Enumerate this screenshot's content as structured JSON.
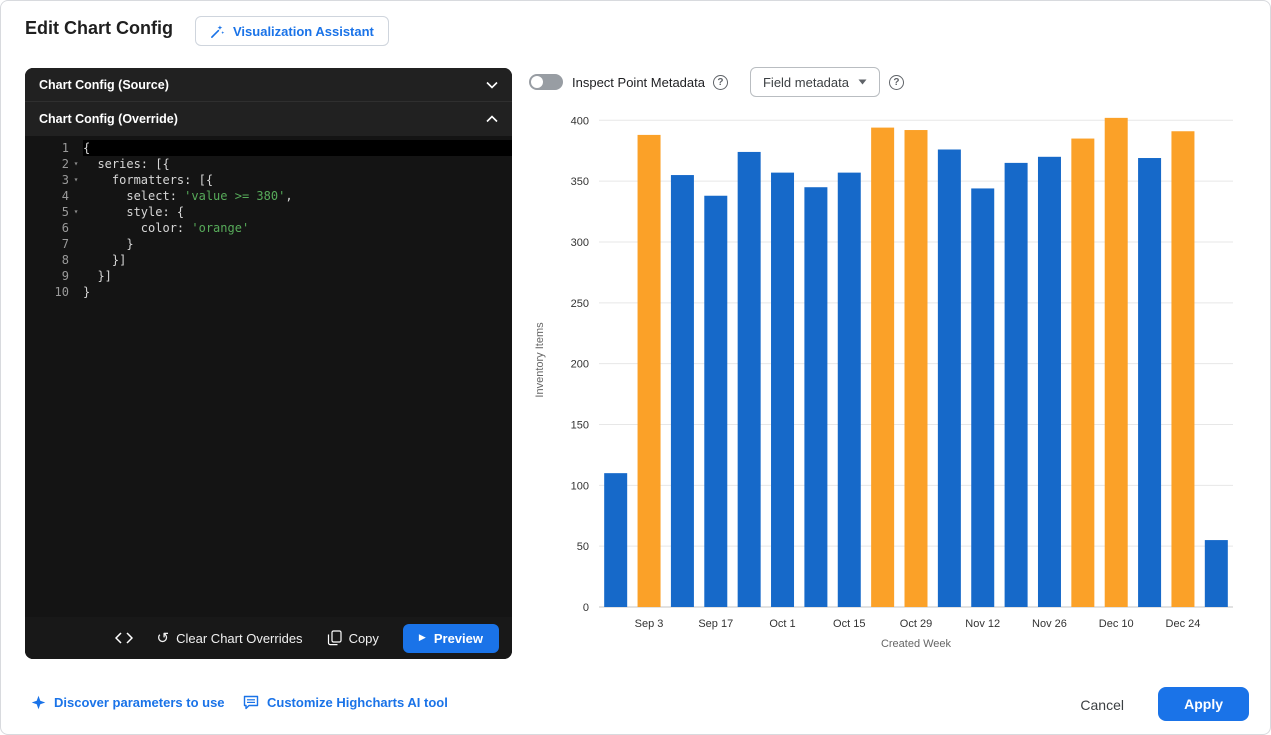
{
  "header": {
    "title": "Edit Chart Config",
    "assistant_button": "Visualization Assistant"
  },
  "editor": {
    "source_section": "Chart Config (Source)",
    "override_section": "Chart Config (Override)",
    "lines": [
      {
        "num": "1",
        "fold": false,
        "selected": true,
        "segments": [
          {
            "t": "{",
            "c": "p"
          }
        ]
      },
      {
        "num": "2",
        "fold": true,
        "segments": [
          {
            "t": "  series: [{",
            "c": "p"
          }
        ]
      },
      {
        "num": "3",
        "fold": true,
        "segments": [
          {
            "t": "    formatters: [{",
            "c": "p"
          }
        ]
      },
      {
        "num": "4",
        "fold": false,
        "segments": [
          {
            "t": "      select: ",
            "c": "p"
          },
          {
            "t": "'value >= 380'",
            "c": "s"
          },
          {
            "t": ",",
            "c": "p"
          }
        ]
      },
      {
        "num": "5",
        "fold": true,
        "segments": [
          {
            "t": "      style: {",
            "c": "p"
          }
        ]
      },
      {
        "num": "6",
        "fold": false,
        "segments": [
          {
            "t": "        color: ",
            "c": "p"
          },
          {
            "t": "'orange'",
            "c": "s"
          }
        ]
      },
      {
        "num": "7",
        "fold": false,
        "segments": [
          {
            "t": "      }",
            "c": "p"
          }
        ]
      },
      {
        "num": "8",
        "fold": false,
        "segments": [
          {
            "t": "    }]",
            "c": "p"
          }
        ]
      },
      {
        "num": "9",
        "fold": false,
        "segments": [
          {
            "t": "  }]",
            "c": "p"
          }
        ]
      },
      {
        "num": "10",
        "fold": false,
        "segments": [
          {
            "t": "}",
            "c": "p"
          }
        ]
      }
    ],
    "footer": {
      "clear": "Clear Chart Overrides",
      "copy": "Copy",
      "preview": "Preview"
    }
  },
  "toolbar": {
    "inspect_toggle": "Inspect Point Metadata",
    "inspect_toggle_state": "off",
    "field_dropdown": "Field metadata"
  },
  "chart_data": {
    "type": "bar",
    "title": "",
    "xlabel": "Created Week",
    "ylabel": "Inventory Items",
    "ylim": [
      0,
      400
    ],
    "yticks": [
      0,
      50,
      100,
      150,
      200,
      250,
      300,
      350,
      400
    ],
    "x_tick_labels": [
      "Sep 3",
      "Sep 17",
      "Oct 1",
      "Oct 15",
      "Oct 29",
      "Nov 12",
      "Nov 26",
      "Dec 10",
      "Dec 24"
    ],
    "tick_every": 2,
    "values": [
      110,
      388,
      355,
      338,
      374,
      357,
      345,
      357,
      394,
      392,
      376,
      344,
      365,
      370,
      385,
      402,
      369,
      391,
      55
    ],
    "highlight_rule": "value >= 380",
    "highlight_threshold": 380,
    "bar_color": "#1669c9",
    "highlight_color": "#fba128",
    "grid": true,
    "legend": false
  },
  "footer": {
    "discover": "Discover parameters to use",
    "customize": "Customize Highcharts AI tool",
    "cancel": "Cancel",
    "apply": "Apply"
  },
  "colors": {
    "accent": "#1a73e8",
    "bar_blue": "#1669c9",
    "bar_orange": "#fba128",
    "code_string_green": "#57ab5a"
  }
}
